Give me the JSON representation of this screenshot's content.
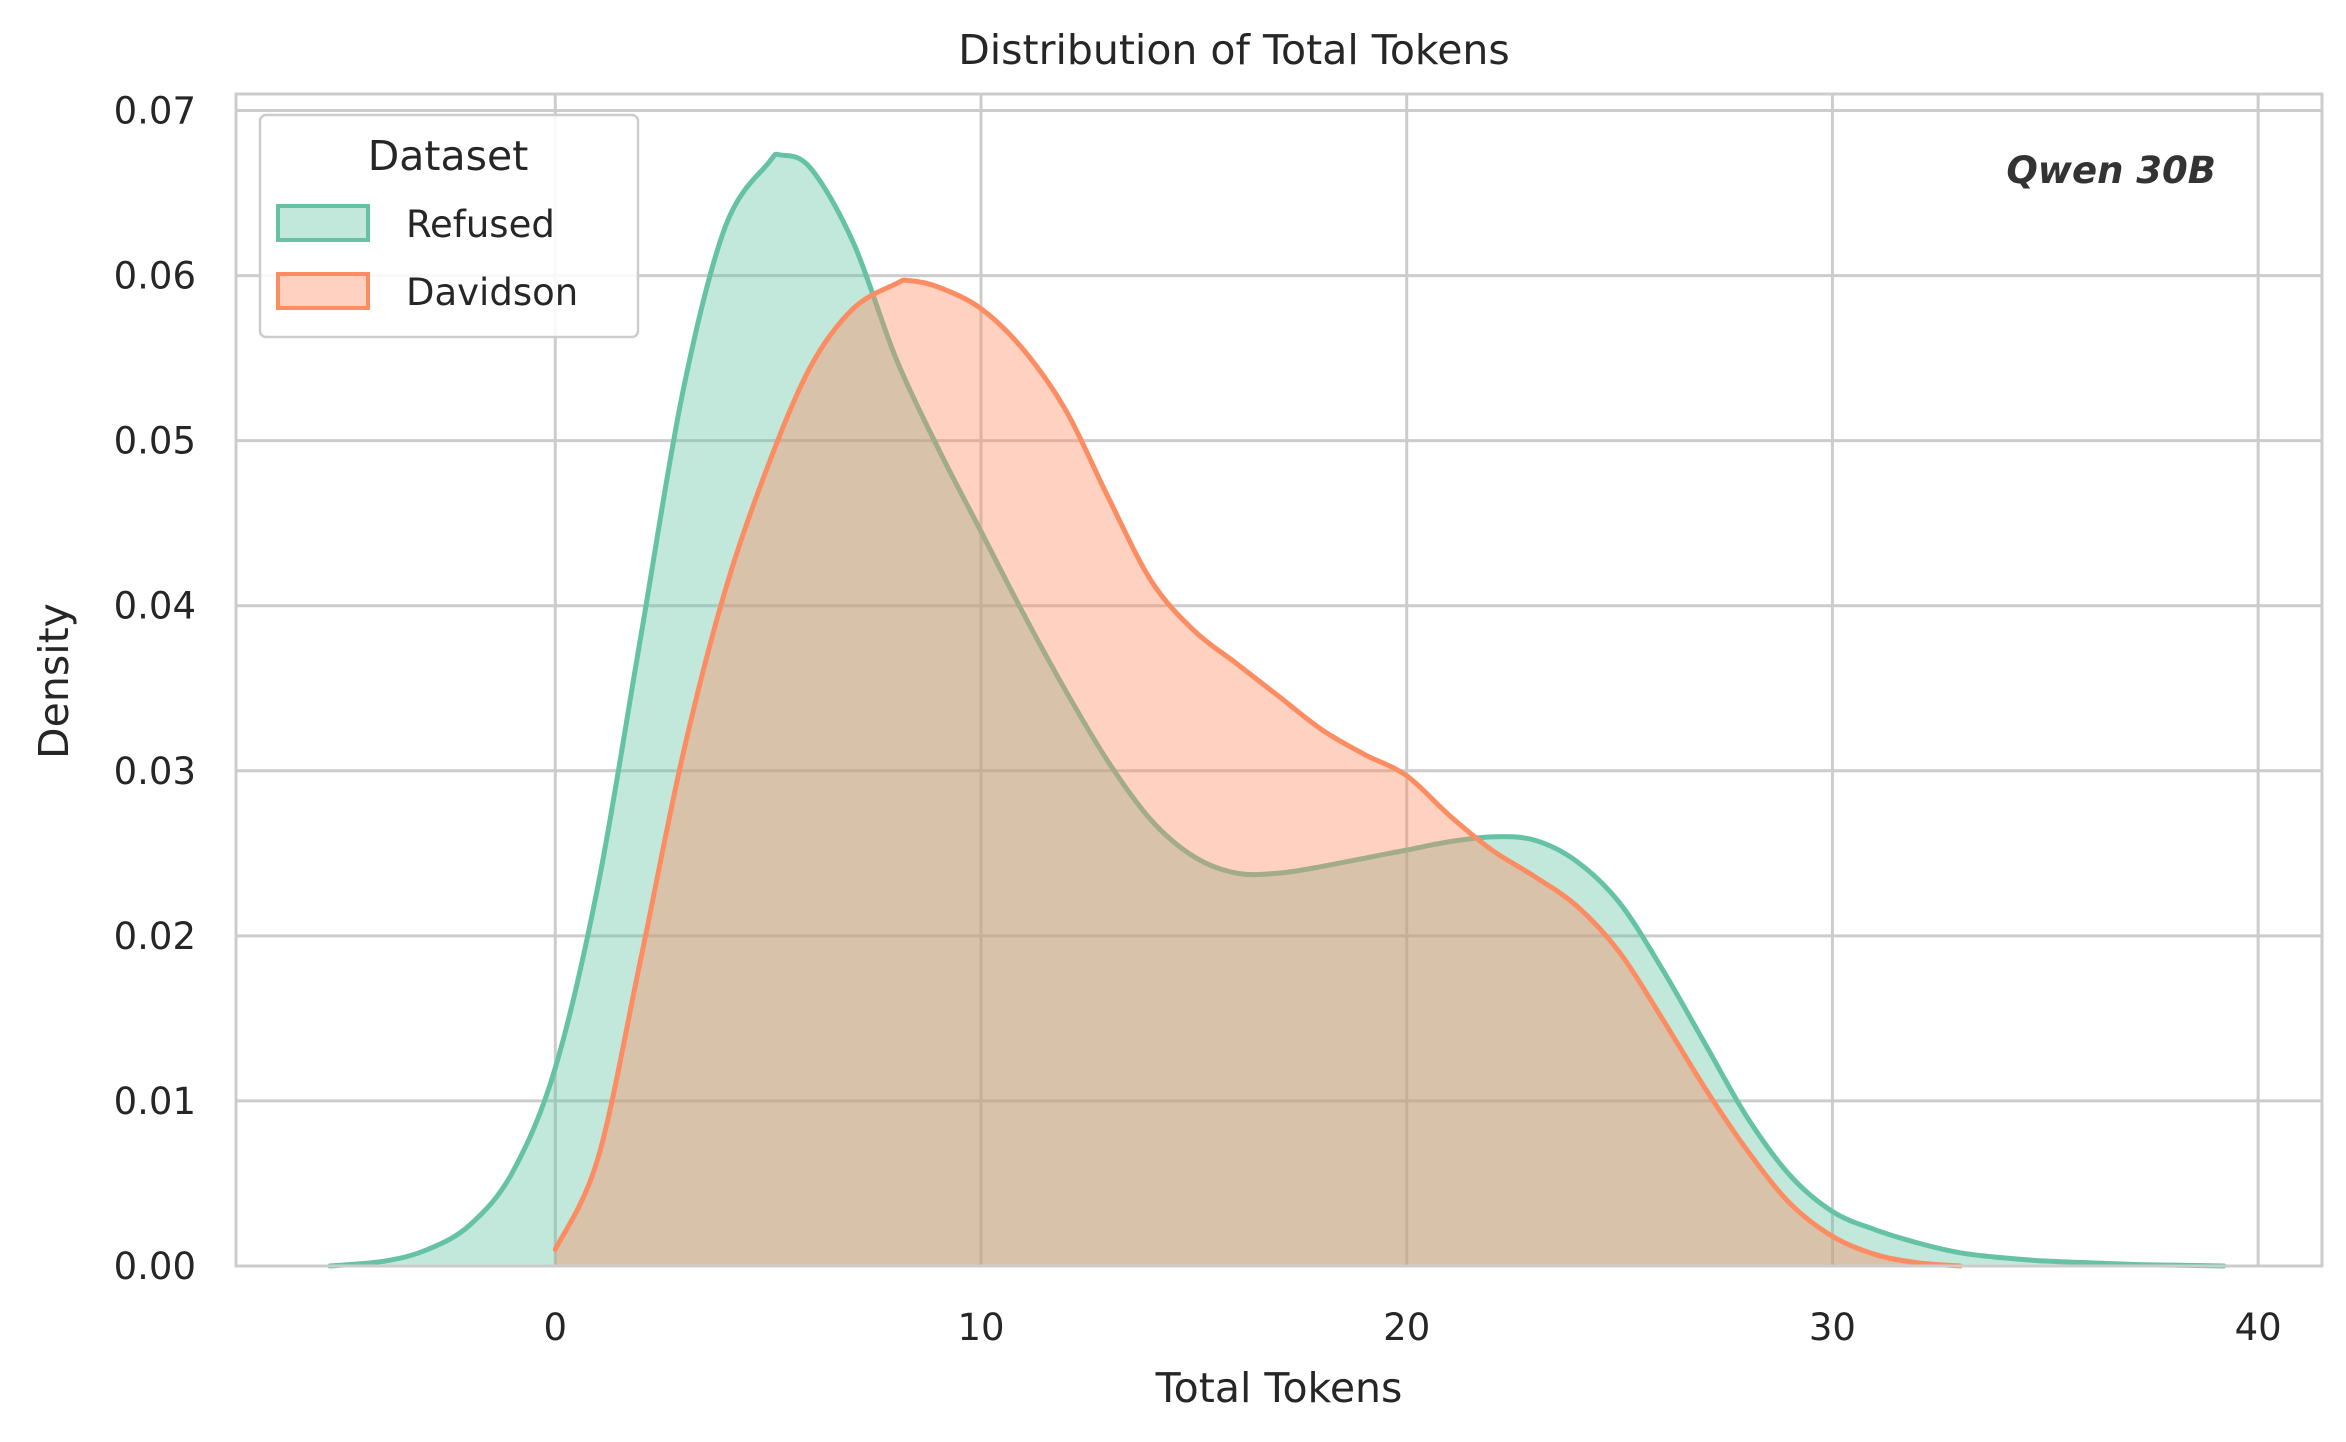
{
  "chart_data": {
    "type": "area",
    "title": "Distribution of Total Tokens",
    "xlabel": "Total Tokens",
    "ylabel": "Density",
    "xlim": [
      -7.5,
      41.5
    ],
    "ylim": [
      0,
      0.071
    ],
    "xticks": [
      0,
      10,
      20,
      30,
      40
    ],
    "yticks": [
      0,
      0.01,
      0.02,
      0.03,
      0.04,
      0.05,
      0.06,
      0.07
    ],
    "xtick_labels": [
      "0",
      "10",
      "20",
      "30",
      "40"
    ],
    "ytick_labels": [
      "0.00",
      "0.01",
      "0.02",
      "0.03",
      "0.04",
      "0.05",
      "0.06",
      "0.07"
    ],
    "grid": true,
    "legend": {
      "title": "Dataset",
      "position": "top-left"
    },
    "annotation": "Qwen 30B",
    "series": [
      {
        "name": "Refused",
        "color": "#66c2a5",
        "x": [
          -5.3,
          -4,
          -3,
          -2,
          -1,
          0,
          1,
          2,
          3,
          4,
          5,
          5.3,
          6,
          7,
          8,
          9,
          10,
          11,
          12,
          13,
          14,
          15,
          16,
          17,
          18,
          19,
          20,
          21,
          22,
          23,
          24,
          25,
          26,
          27,
          28,
          29,
          30,
          31,
          32,
          33,
          34,
          35,
          36,
          37,
          38,
          39.2
        ],
        "y": [
          0.0,
          0.0003,
          0.001,
          0.0025,
          0.0057,
          0.012,
          0.023,
          0.038,
          0.053,
          0.063,
          0.0668,
          0.0673,
          0.0665,
          0.062,
          0.055,
          0.0495,
          0.0445,
          0.0395,
          0.0348,
          0.0305,
          0.027,
          0.0248,
          0.0238,
          0.0238,
          0.0242,
          0.0247,
          0.0252,
          0.0257,
          0.026,
          0.0258,
          0.0245,
          0.022,
          0.018,
          0.0135,
          0.009,
          0.0055,
          0.0033,
          0.0022,
          0.0014,
          0.0008,
          0.0005,
          0.0003,
          0.0002,
          0.0001,
          5e-05,
          0.0
        ]
      },
      {
        "name": "Davidson",
        "color": "#fc8d62",
        "x": [
          0,
          1,
          2,
          3,
          4,
          5,
          6,
          7,
          8,
          8.3,
          9,
          10,
          11,
          12,
          13,
          14,
          15,
          16,
          17,
          18,
          19,
          20,
          21,
          22,
          23,
          24,
          25,
          26,
          27,
          28,
          29,
          30,
          31,
          32,
          33
        ],
        "y": [
          0.001,
          0.0065,
          0.0185,
          0.031,
          0.041,
          0.0485,
          0.0545,
          0.058,
          0.0595,
          0.0597,
          0.0593,
          0.058,
          0.0555,
          0.0518,
          0.0465,
          0.0415,
          0.0385,
          0.0365,
          0.0345,
          0.0325,
          0.031,
          0.0297,
          0.0273,
          0.0252,
          0.0236,
          0.0218,
          0.019,
          0.015,
          0.0108,
          0.007,
          0.0038,
          0.0018,
          0.0007,
          0.0002,
          0.0
        ]
      }
    ]
  }
}
